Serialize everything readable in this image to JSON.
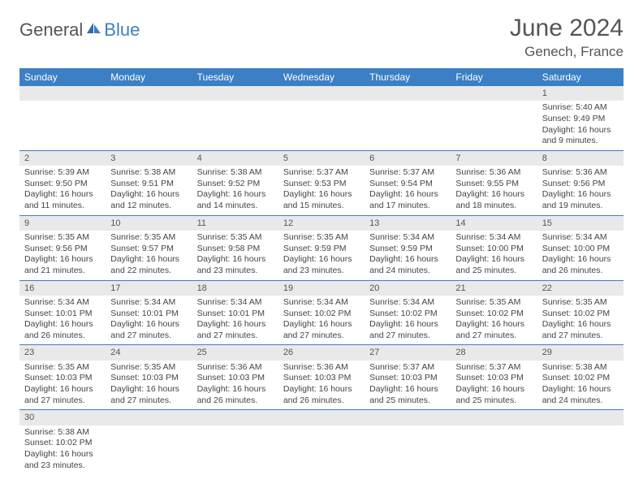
{
  "brand": {
    "part1": "General",
    "part2": "Blue"
  },
  "title": "June 2024",
  "location": "Genech, France",
  "colors": {
    "header_bg": "#3b7fc4",
    "header_text": "#ffffff",
    "daystrip_bg": "#e9e9e9",
    "cell_border": "#3b7fc4",
    "body_text": "#444444"
  },
  "typography": {
    "title_fontsize": 30,
    "location_fontsize": 17,
    "dayheader_fontsize": 12,
    "cell_fontsize": 10.5
  },
  "day_headers": [
    "Sunday",
    "Monday",
    "Tuesday",
    "Wednesday",
    "Thursday",
    "Friday",
    "Saturday"
  ],
  "weeks": [
    [
      null,
      null,
      null,
      null,
      null,
      null,
      {
        "n": "1",
        "sr": "Sunrise: 5:40 AM",
        "ss": "Sunset: 9:49 PM",
        "d1": "Daylight: 16 hours",
        "d2": "and 9 minutes."
      }
    ],
    [
      {
        "n": "2",
        "sr": "Sunrise: 5:39 AM",
        "ss": "Sunset: 9:50 PM",
        "d1": "Daylight: 16 hours",
        "d2": "and 11 minutes."
      },
      {
        "n": "3",
        "sr": "Sunrise: 5:38 AM",
        "ss": "Sunset: 9:51 PM",
        "d1": "Daylight: 16 hours",
        "d2": "and 12 minutes."
      },
      {
        "n": "4",
        "sr": "Sunrise: 5:38 AM",
        "ss": "Sunset: 9:52 PM",
        "d1": "Daylight: 16 hours",
        "d2": "and 14 minutes."
      },
      {
        "n": "5",
        "sr": "Sunrise: 5:37 AM",
        "ss": "Sunset: 9:53 PM",
        "d1": "Daylight: 16 hours",
        "d2": "and 15 minutes."
      },
      {
        "n": "6",
        "sr": "Sunrise: 5:37 AM",
        "ss": "Sunset: 9:54 PM",
        "d1": "Daylight: 16 hours",
        "d2": "and 17 minutes."
      },
      {
        "n": "7",
        "sr": "Sunrise: 5:36 AM",
        "ss": "Sunset: 9:55 PM",
        "d1": "Daylight: 16 hours",
        "d2": "and 18 minutes."
      },
      {
        "n": "8",
        "sr": "Sunrise: 5:36 AM",
        "ss": "Sunset: 9:56 PM",
        "d1": "Daylight: 16 hours",
        "d2": "and 19 minutes."
      }
    ],
    [
      {
        "n": "9",
        "sr": "Sunrise: 5:35 AM",
        "ss": "Sunset: 9:56 PM",
        "d1": "Daylight: 16 hours",
        "d2": "and 21 minutes."
      },
      {
        "n": "10",
        "sr": "Sunrise: 5:35 AM",
        "ss": "Sunset: 9:57 PM",
        "d1": "Daylight: 16 hours",
        "d2": "and 22 minutes."
      },
      {
        "n": "11",
        "sr": "Sunrise: 5:35 AM",
        "ss": "Sunset: 9:58 PM",
        "d1": "Daylight: 16 hours",
        "d2": "and 23 minutes."
      },
      {
        "n": "12",
        "sr": "Sunrise: 5:35 AM",
        "ss": "Sunset: 9:59 PM",
        "d1": "Daylight: 16 hours",
        "d2": "and 23 minutes."
      },
      {
        "n": "13",
        "sr": "Sunrise: 5:34 AM",
        "ss": "Sunset: 9:59 PM",
        "d1": "Daylight: 16 hours",
        "d2": "and 24 minutes."
      },
      {
        "n": "14",
        "sr": "Sunrise: 5:34 AM",
        "ss": "Sunset: 10:00 PM",
        "d1": "Daylight: 16 hours",
        "d2": "and 25 minutes."
      },
      {
        "n": "15",
        "sr": "Sunrise: 5:34 AM",
        "ss": "Sunset: 10:00 PM",
        "d1": "Daylight: 16 hours",
        "d2": "and 26 minutes."
      }
    ],
    [
      {
        "n": "16",
        "sr": "Sunrise: 5:34 AM",
        "ss": "Sunset: 10:01 PM",
        "d1": "Daylight: 16 hours",
        "d2": "and 26 minutes."
      },
      {
        "n": "17",
        "sr": "Sunrise: 5:34 AM",
        "ss": "Sunset: 10:01 PM",
        "d1": "Daylight: 16 hours",
        "d2": "and 27 minutes."
      },
      {
        "n": "18",
        "sr": "Sunrise: 5:34 AM",
        "ss": "Sunset: 10:01 PM",
        "d1": "Daylight: 16 hours",
        "d2": "and 27 minutes."
      },
      {
        "n": "19",
        "sr": "Sunrise: 5:34 AM",
        "ss": "Sunset: 10:02 PM",
        "d1": "Daylight: 16 hours",
        "d2": "and 27 minutes."
      },
      {
        "n": "20",
        "sr": "Sunrise: 5:34 AM",
        "ss": "Sunset: 10:02 PM",
        "d1": "Daylight: 16 hours",
        "d2": "and 27 minutes."
      },
      {
        "n": "21",
        "sr": "Sunrise: 5:35 AM",
        "ss": "Sunset: 10:02 PM",
        "d1": "Daylight: 16 hours",
        "d2": "and 27 minutes."
      },
      {
        "n": "22",
        "sr": "Sunrise: 5:35 AM",
        "ss": "Sunset: 10:02 PM",
        "d1": "Daylight: 16 hours",
        "d2": "and 27 minutes."
      }
    ],
    [
      {
        "n": "23",
        "sr": "Sunrise: 5:35 AM",
        "ss": "Sunset: 10:03 PM",
        "d1": "Daylight: 16 hours",
        "d2": "and 27 minutes."
      },
      {
        "n": "24",
        "sr": "Sunrise: 5:35 AM",
        "ss": "Sunset: 10:03 PM",
        "d1": "Daylight: 16 hours",
        "d2": "and 27 minutes."
      },
      {
        "n": "25",
        "sr": "Sunrise: 5:36 AM",
        "ss": "Sunset: 10:03 PM",
        "d1": "Daylight: 16 hours",
        "d2": "and 26 minutes."
      },
      {
        "n": "26",
        "sr": "Sunrise: 5:36 AM",
        "ss": "Sunset: 10:03 PM",
        "d1": "Daylight: 16 hours",
        "d2": "and 26 minutes."
      },
      {
        "n": "27",
        "sr": "Sunrise: 5:37 AM",
        "ss": "Sunset: 10:03 PM",
        "d1": "Daylight: 16 hours",
        "d2": "and 25 minutes."
      },
      {
        "n": "28",
        "sr": "Sunrise: 5:37 AM",
        "ss": "Sunset: 10:03 PM",
        "d1": "Daylight: 16 hours",
        "d2": "and 25 minutes."
      },
      {
        "n": "29",
        "sr": "Sunrise: 5:38 AM",
        "ss": "Sunset: 10:02 PM",
        "d1": "Daylight: 16 hours",
        "d2": "and 24 minutes."
      }
    ],
    [
      {
        "n": "30",
        "sr": "Sunrise: 5:38 AM",
        "ss": "Sunset: 10:02 PM",
        "d1": "Daylight: 16 hours",
        "d2": "and 23 minutes."
      },
      null,
      null,
      null,
      null,
      null,
      null
    ]
  ]
}
